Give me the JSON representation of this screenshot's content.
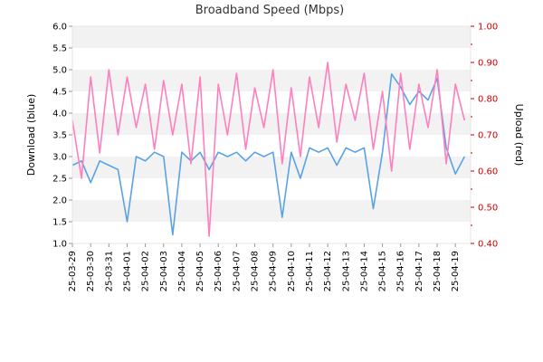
{
  "chart_data": {
    "type": "line",
    "title": "Broadband Speed (Mbps)",
    "left_axis": {
      "label": "Download (blue)",
      "range": [
        1.0,
        6.0
      ],
      "ticks": [
        "1.0",
        "1.5",
        "2.0",
        "2.5",
        "3.0",
        "3.5",
        "4.0",
        "4.5",
        "5.0",
        "5.5",
        "6.0"
      ]
    },
    "right_axis": {
      "label": "Upload (red)",
      "range": [
        0.4,
        1.0
      ],
      "ticks": [
        "0.40",
        "0.50",
        "0.60",
        "0.70",
        "0.80",
        "0.90",
        "1.00"
      ]
    },
    "x_ticks": [
      "25-03-29",
      "25-03-30",
      "25-03-31",
      "25-04-01",
      "25-04-02",
      "25-04-03",
      "25-04-04",
      "25-04-05",
      "25-04-06",
      "25-04-07",
      "25-04-08",
      "25-04-09",
      "25-04-10",
      "25-04-11",
      "25-04-12",
      "25-04-13",
      "25-04-14",
      "25-04-15",
      "25-04-16",
      "25-04-17",
      "25-04-18",
      "25-04-19"
    ],
    "x_range": [
      "2025-03-29T00:00",
      "2025-04-19T20:00"
    ],
    "grid": "alternating horizontal bands",
    "colors": {
      "download": "#5aa2e6",
      "upload": "#ff7fbf",
      "right_axis": "#cc0000",
      "band": "#f2f2f2"
    },
    "series": [
      {
        "axis": "left",
        "x": [
          "2025-03-29T00:00",
          "2025-03-29T12:00",
          "2025-03-30T00:00",
          "2025-03-30T12:00",
          "2025-03-31T00:00",
          "2025-03-31T12:00",
          "2025-04-01T00:00",
          "2025-04-01T12:00",
          "2025-04-02T00:00",
          "2025-04-02T12:00",
          "2025-04-03T00:00",
          "2025-04-03T12:00",
          "2025-04-04T00:00",
          "2025-04-04T12:00",
          "2025-04-05T00:00",
          "2025-04-05T12:00",
          "2025-04-06T00:00",
          "2025-04-06T12:00",
          "2025-04-07T00:00",
          "2025-04-07T12:00",
          "2025-04-08T00:00",
          "2025-04-08T12:00",
          "2025-04-09T00:00",
          "2025-04-09T12:00",
          "2025-04-10T00:00",
          "2025-04-10T12:00",
          "2025-04-11T00:00",
          "2025-04-11T12:00",
          "2025-04-12T00:00",
          "2025-04-12T12:00",
          "2025-04-13T00:00",
          "2025-04-13T12:00",
          "2025-04-14T00:00",
          "2025-04-14T12:00",
          "2025-04-15T00:00",
          "2025-04-15T12:00",
          "2025-04-16T00:00",
          "2025-04-16T12:00",
          "2025-04-17T00:00",
          "2025-04-17T12:00",
          "2025-04-18T00:00",
          "2025-04-18T12:00",
          "2025-04-19T00:00",
          "2025-04-19T12:00"
        ],
        "values": [
          2.8,
          2.9,
          2.4,
          2.9,
          2.8,
          2.7,
          1.5,
          3.0,
          2.9,
          3.1,
          3.0,
          1.2,
          3.1,
          2.9,
          3.1,
          2.7,
          3.1,
          3.0,
          3.1,
          2.9,
          3.1,
          3.0,
          3.1,
          1.6,
          3.1,
          2.5,
          3.2,
          3.1,
          3.2,
          2.8,
          3.2,
          3.1,
          3.2,
          1.8,
          3.1,
          4.9,
          4.6,
          4.2,
          4.5,
          4.3,
          4.8,
          3.2,
          2.6,
          3.0
        ]
      },
      {
        "axis": "right",
        "x": [
          "2025-03-29T00:00",
          "2025-03-29T12:00",
          "2025-03-30T00:00",
          "2025-03-30T12:00",
          "2025-03-31T00:00",
          "2025-03-31T12:00",
          "2025-04-01T00:00",
          "2025-04-01T12:00",
          "2025-04-02T00:00",
          "2025-04-02T12:00",
          "2025-04-03T00:00",
          "2025-04-03T12:00",
          "2025-04-04T00:00",
          "2025-04-04T12:00",
          "2025-04-05T00:00",
          "2025-04-05T12:00",
          "2025-04-06T00:00",
          "2025-04-06T12:00",
          "2025-04-07T00:00",
          "2025-04-07T12:00",
          "2025-04-08T00:00",
          "2025-04-08T12:00",
          "2025-04-09T00:00",
          "2025-04-09T12:00",
          "2025-04-10T00:00",
          "2025-04-10T12:00",
          "2025-04-11T00:00",
          "2025-04-11T12:00",
          "2025-04-12T00:00",
          "2025-04-12T12:00",
          "2025-04-13T00:00",
          "2025-04-13T12:00",
          "2025-04-14T00:00",
          "2025-04-14T12:00",
          "2025-04-15T00:00",
          "2025-04-15T12:00",
          "2025-04-16T00:00",
          "2025-04-16T12:00",
          "2025-04-17T00:00",
          "2025-04-17T12:00",
          "2025-04-18T00:00",
          "2025-04-18T12:00",
          "2025-04-19T00:00",
          "2025-04-19T12:00"
        ],
        "values": [
          0.74,
          0.58,
          0.86,
          0.65,
          0.88,
          0.7,
          0.86,
          0.72,
          0.84,
          0.66,
          0.85,
          0.7,
          0.84,
          0.62,
          0.86,
          0.42,
          0.84,
          0.7,
          0.87,
          0.66,
          0.83,
          0.72,
          0.88,
          0.62,
          0.83,
          0.64,
          0.86,
          0.72,
          0.9,
          0.68,
          0.84,
          0.74,
          0.87,
          0.66,
          0.82,
          0.6,
          0.87,
          0.66,
          0.84,
          0.72,
          0.88,
          0.62,
          0.84,
          0.74
        ]
      }
    ]
  }
}
